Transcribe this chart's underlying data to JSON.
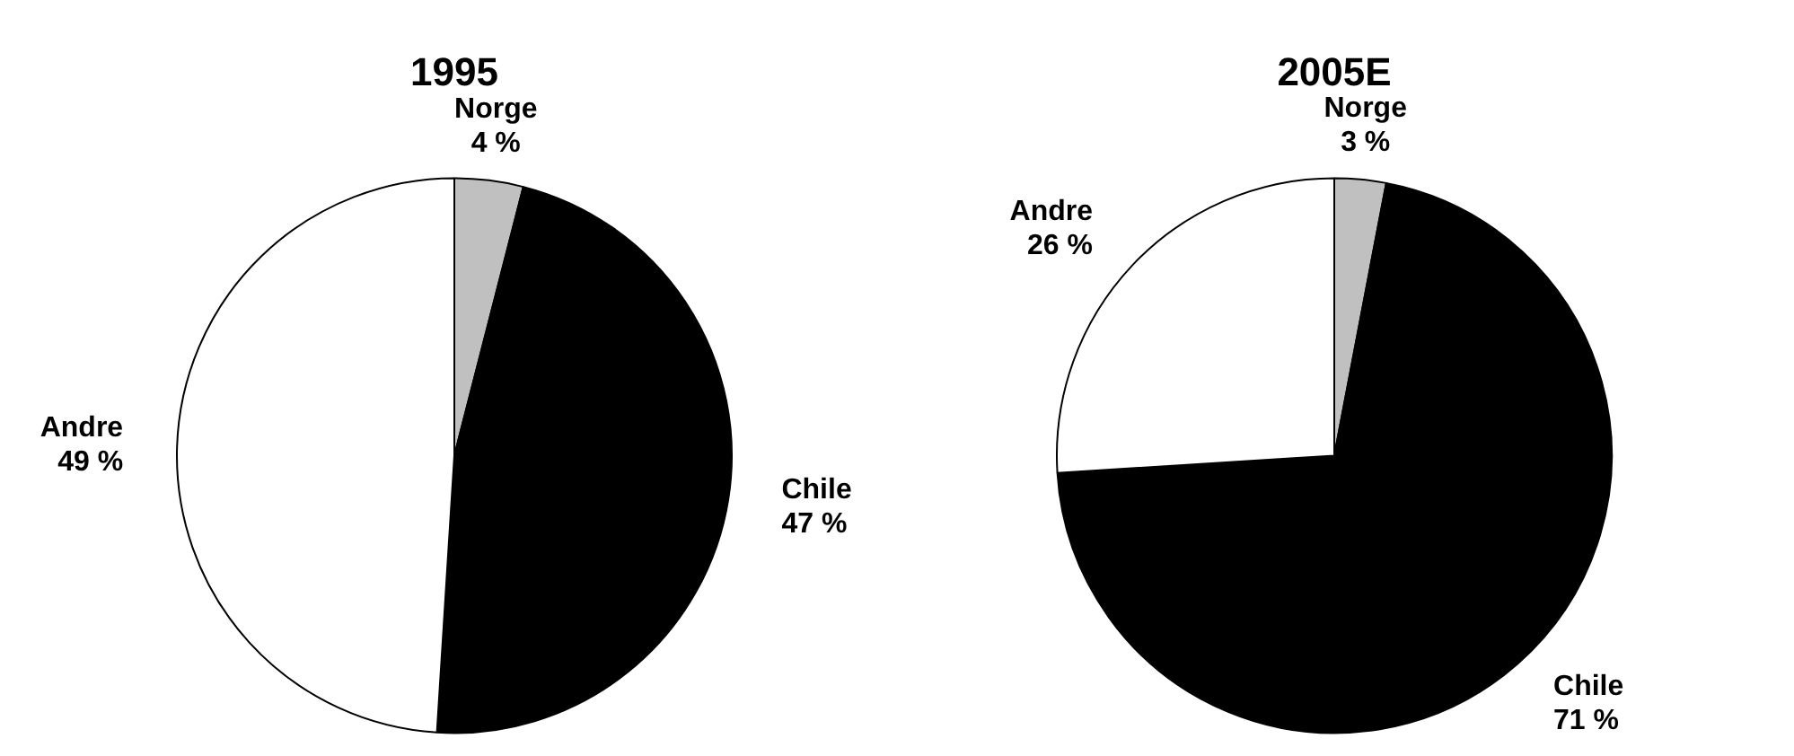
{
  "chart_data": [
    {
      "type": "pie",
      "title": "1995",
      "categories": [
        "Norge",
        "Chile",
        "Andre"
      ],
      "values": [
        4,
        47,
        49
      ],
      "value_labels": [
        "4 %",
        "47 %",
        "49 %"
      ],
      "colors": [
        "#c0c0c0",
        "#000000",
        "#ffffff"
      ],
      "legend": false
    },
    {
      "type": "pie",
      "title": "2005E",
      "categories": [
        "Norge",
        "Chile",
        "Andre"
      ],
      "values": [
        3,
        71,
        26
      ],
      "value_labels": [
        "3 %",
        "71 %",
        "26 %"
      ],
      "colors": [
        "#c0c0c0",
        "#000000",
        "#ffffff"
      ],
      "legend": false
    }
  ]
}
